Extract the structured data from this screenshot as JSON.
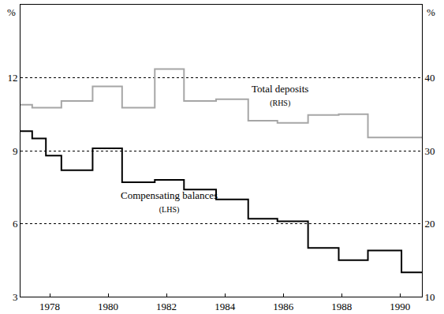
{
  "chart_data": {
    "type": "line",
    "line_style": "step",
    "grid": true,
    "y_label": "%",
    "y2_label": "%",
    "xlim": [
      1977.0,
      1990.75
    ],
    "xticks": [
      1978,
      1980,
      1982,
      1984,
      1986,
      1988,
      1990
    ],
    "ylim": [
      3,
      15
    ],
    "yticks": [
      3,
      6,
      9,
      12
    ],
    "y2lim": [
      10,
      50
    ],
    "y2ticks": [
      10,
      20,
      30,
      40
    ],
    "x": [
      1977.0,
      1977.4,
      1977.87,
      1978.4,
      1979.47,
      1980.48,
      1981.6,
      1982.6,
      1983.7,
      1984.8,
      1985.8,
      1986.85,
      1987.9,
      1988.9,
      1990.05,
      1990.75
    ],
    "series": [
      {
        "name": "Total deposits",
        "color": "#a6a6a6",
        "axis": "y2",
        "values": [
          36.3,
          35.9,
          35.9,
          36.8,
          38.8,
          35.9,
          41.2,
          36.8,
          37.05,
          34.1,
          33.8,
          34.9,
          35.0,
          31.8,
          31.8,
          31.8
        ]
      },
      {
        "name": "Compensating balances",
        "color": "#000000",
        "axis": "y",
        "values": [
          9.8,
          9.5,
          8.8,
          8.2,
          9.1,
          7.7,
          7.8,
          7.4,
          7.0,
          6.2,
          6.1,
          5.0,
          4.5,
          4.9,
          4.0,
          4.0
        ]
      }
    ],
    "annotations": [
      {
        "text": "Total deposits",
        "subtext": "(RHS)",
        "x": 1985.9,
        "y": 37.6,
        "axis": "y2"
      },
      {
        "text": "Compensating balances",
        "subtext": "(LHS)",
        "x": 1982.1,
        "y": 6.9,
        "axis": "y"
      }
    ]
  }
}
